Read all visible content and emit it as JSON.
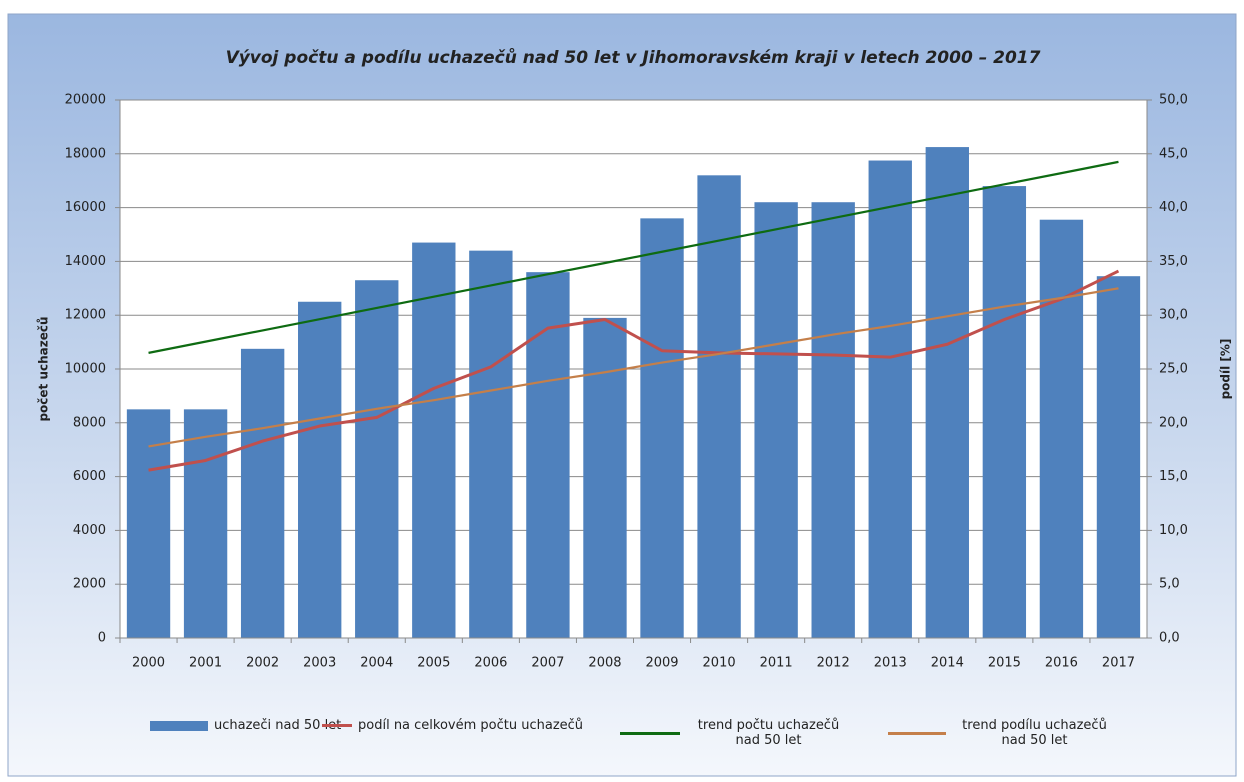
{
  "chart_data": {
    "type": "bar",
    "title": "Vývoj počtu a podílu uchazečů nad 50 let v Jihomoravském kraji v letech 2000 – 2017",
    "y_label": "počet uchazečů",
    "y2_label": "podíl [%]",
    "categories": [
      "2000",
      "2001",
      "2002",
      "2003",
      "2004",
      "2005",
      "2006",
      "2007",
      "2008",
      "2009",
      "2010",
      "2011",
      "2012",
      "2013",
      "2014",
      "2015",
      "2016",
      "2017"
    ],
    "series": [
      {
        "name": "uchazeči nad 50 let",
        "type": "bar",
        "color": "#4f81bd",
        "values": [
          8500,
          8500,
          10750,
          12500,
          13300,
          14700,
          14400,
          13600,
          11900,
          15600,
          17200,
          16200,
          16200,
          17750,
          18250,
          16800,
          15550,
          13450
        ]
      },
      {
        "name": "podíl na celkovém počtu uchazečů",
        "type": "line",
        "axis": "y2",
        "color": "#c0504d",
        "values": [
          15.6,
          16.5,
          18.3,
          19.7,
          20.5,
          23.2,
          25.2,
          28.8,
          29.6,
          26.7,
          26.5,
          26.4,
          26.3,
          26.1,
          27.3,
          29.6,
          31.5,
          34.1
        ]
      },
      {
        "name": "trend počtu uchazečů nad 50 let",
        "type": "line",
        "color": "#0e6b12",
        "values": [
          10600,
          11018,
          11435,
          11853,
          12271,
          12688,
          13106,
          13524,
          13941,
          14359,
          14776,
          15194,
          15612,
          16029,
          16447,
          16865,
          17282,
          17700
        ]
      },
      {
        "name": "trend podílu uchazečů nad 50 let",
        "type": "line",
        "axis": "y2",
        "color": "#c47f4a",
        "values": [
          17.8,
          18.7,
          19.5,
          20.4,
          21.3,
          22.1,
          23.0,
          23.9,
          24.7,
          25.6,
          26.4,
          27.3,
          28.2,
          29.0,
          29.9,
          30.8,
          31.6,
          32.5
        ]
      }
    ],
    "ylim": [
      0,
      20000
    ],
    "yticks": [
      0,
      2000,
      4000,
      6000,
      8000,
      10000,
      12000,
      14000,
      16000,
      18000,
      20000
    ],
    "y2lim": [
      0,
      50
    ],
    "y2ticks": [
      {
        "value": 0,
        "label": "0,0"
      },
      {
        "value": 5,
        "label": "5,0"
      },
      {
        "value": 10,
        "label": "10,0"
      },
      {
        "value": 15,
        "label": "15,0"
      },
      {
        "value": 20,
        "label": "20,0"
      },
      {
        "value": 25,
        "label": "25,0"
      },
      {
        "value": 30,
        "label": "30,0"
      },
      {
        "value": 35,
        "label": "35,0"
      },
      {
        "value": 40,
        "label": "40,0"
      },
      {
        "value": 45,
        "label": "45,0"
      },
      {
        "value": 50,
        "label": "50,0"
      }
    ],
    "grid": true
  }
}
